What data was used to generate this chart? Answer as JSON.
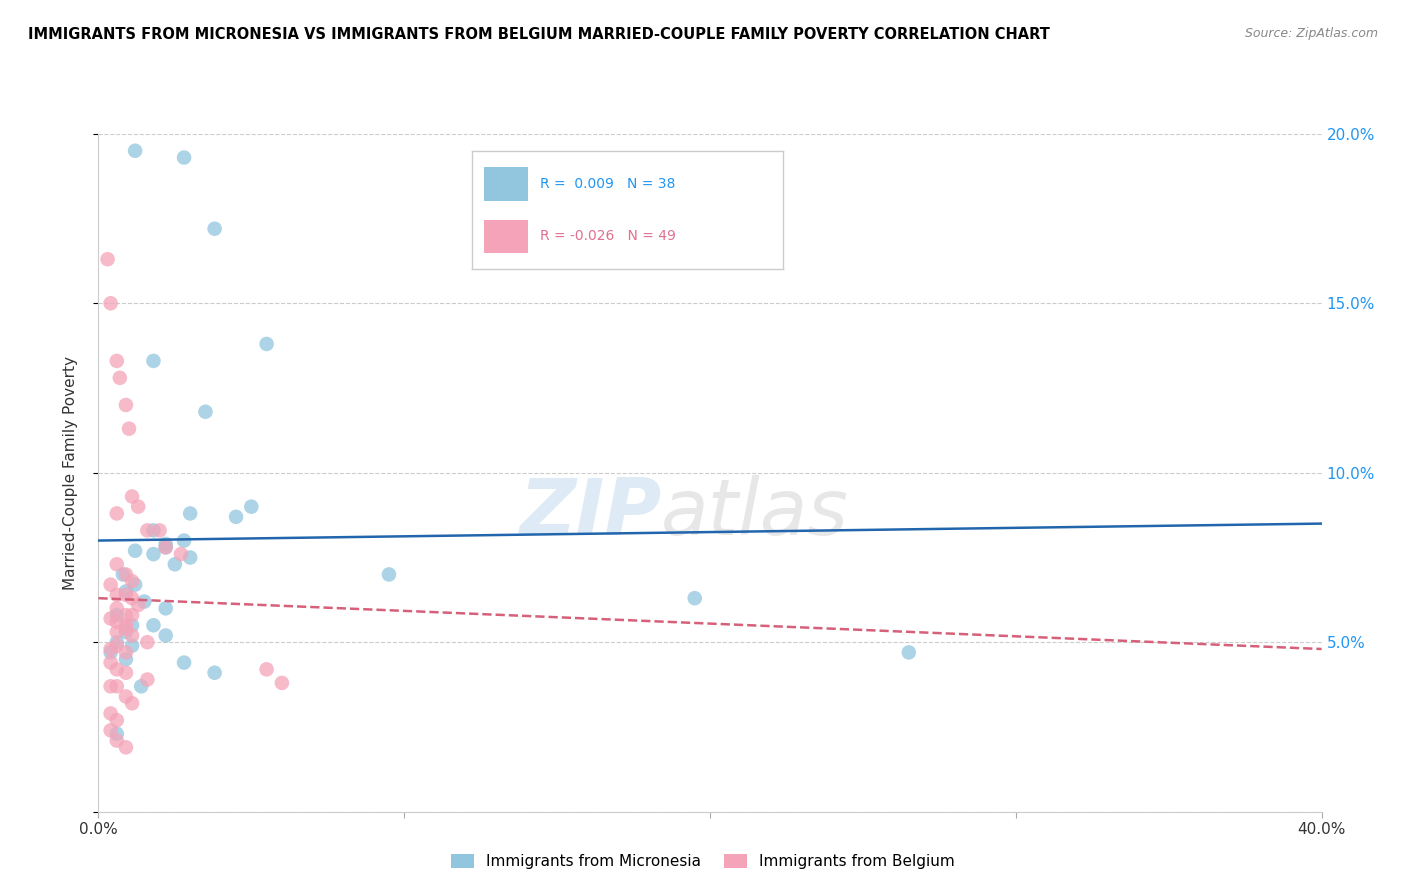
{
  "title": "IMMIGRANTS FROM MICRONESIA VS IMMIGRANTS FROM BELGIUM MARRIED-COUPLE FAMILY POVERTY CORRELATION CHART",
  "source": "Source: ZipAtlas.com",
  "ylabel": "Married-Couple Family Poverty",
  "xlim": [
    0.0,
    40.0
  ],
  "ylim": [
    0.0,
    20.0
  ],
  "blue_color": "#92c5de",
  "pink_color": "#f4a3b8",
  "blue_line_color": "#2166ac",
  "pink_line_color": "#d6607a",
  "watermark_zip": "ZIP",
  "watermark_atlas": "atlas",
  "blue_line_x": [
    0.0,
    40.0
  ],
  "blue_line_y": [
    8.0,
    8.5
  ],
  "pink_line_x": [
    0.0,
    40.0
  ],
  "pink_line_y": [
    6.3,
    4.8
  ],
  "blue_scatter": [
    [
      1.2,
      19.5
    ],
    [
      2.8,
      19.3
    ],
    [
      3.8,
      17.2
    ],
    [
      1.8,
      13.3
    ],
    [
      5.5,
      13.8
    ],
    [
      3.5,
      11.8
    ],
    [
      5.0,
      9.0
    ],
    [
      3.0,
      8.8
    ],
    [
      4.5,
      8.7
    ],
    [
      1.8,
      8.3
    ],
    [
      2.2,
      7.9
    ],
    [
      2.8,
      8.0
    ],
    [
      1.2,
      7.7
    ],
    [
      1.8,
      7.6
    ],
    [
      3.0,
      7.5
    ],
    [
      2.5,
      7.3
    ],
    [
      0.8,
      7.0
    ],
    [
      1.2,
      6.7
    ],
    [
      0.9,
      6.5
    ],
    [
      1.5,
      6.2
    ],
    [
      2.2,
      6.0
    ],
    [
      0.6,
      5.8
    ],
    [
      1.1,
      5.5
    ],
    [
      0.9,
      5.3
    ],
    [
      1.8,
      5.5
    ],
    [
      2.2,
      5.2
    ],
    [
      0.6,
      5.0
    ],
    [
      1.1,
      4.9
    ],
    [
      0.4,
      4.7
    ],
    [
      0.9,
      4.5
    ],
    [
      2.8,
      4.4
    ],
    [
      3.8,
      4.1
    ],
    [
      1.4,
      3.7
    ],
    [
      19.5,
      6.3
    ],
    [
      0.6,
      2.3
    ],
    [
      2.2,
      7.8
    ],
    [
      9.5,
      7.0
    ],
    [
      26.5,
      4.7
    ]
  ],
  "pink_scatter": [
    [
      0.3,
      16.3
    ],
    [
      0.4,
      15.0
    ],
    [
      0.6,
      13.3
    ],
    [
      0.7,
      12.8
    ],
    [
      0.9,
      12.0
    ],
    [
      1.0,
      11.3
    ],
    [
      1.1,
      9.3
    ],
    [
      1.3,
      9.0
    ],
    [
      0.6,
      8.8
    ],
    [
      1.6,
      8.3
    ],
    [
      2.0,
      8.3
    ],
    [
      2.2,
      7.8
    ],
    [
      2.7,
      7.6
    ],
    [
      0.6,
      7.3
    ],
    [
      0.9,
      7.0
    ],
    [
      1.1,
      6.8
    ],
    [
      0.4,
      6.7
    ],
    [
      0.6,
      6.4
    ],
    [
      0.9,
      6.4
    ],
    [
      1.1,
      6.3
    ],
    [
      1.3,
      6.1
    ],
    [
      0.6,
      6.0
    ],
    [
      0.9,
      5.8
    ],
    [
      1.1,
      5.8
    ],
    [
      0.4,
      5.7
    ],
    [
      0.6,
      5.6
    ],
    [
      0.9,
      5.5
    ],
    [
      0.6,
      5.3
    ],
    [
      0.9,
      5.4
    ],
    [
      1.1,
      5.2
    ],
    [
      1.6,
      5.0
    ],
    [
      0.4,
      4.8
    ],
    [
      0.6,
      4.9
    ],
    [
      0.9,
      4.7
    ],
    [
      0.4,
      4.4
    ],
    [
      0.6,
      4.2
    ],
    [
      0.9,
      4.1
    ],
    [
      1.6,
      3.9
    ],
    [
      0.4,
      3.7
    ],
    [
      0.6,
      3.7
    ],
    [
      0.9,
      3.4
    ],
    [
      1.1,
      3.2
    ],
    [
      0.4,
      2.9
    ],
    [
      0.6,
      2.7
    ],
    [
      5.5,
      4.2
    ],
    [
      0.4,
      2.4
    ],
    [
      0.6,
      2.1
    ],
    [
      0.9,
      1.9
    ],
    [
      6.0,
      3.8
    ]
  ]
}
